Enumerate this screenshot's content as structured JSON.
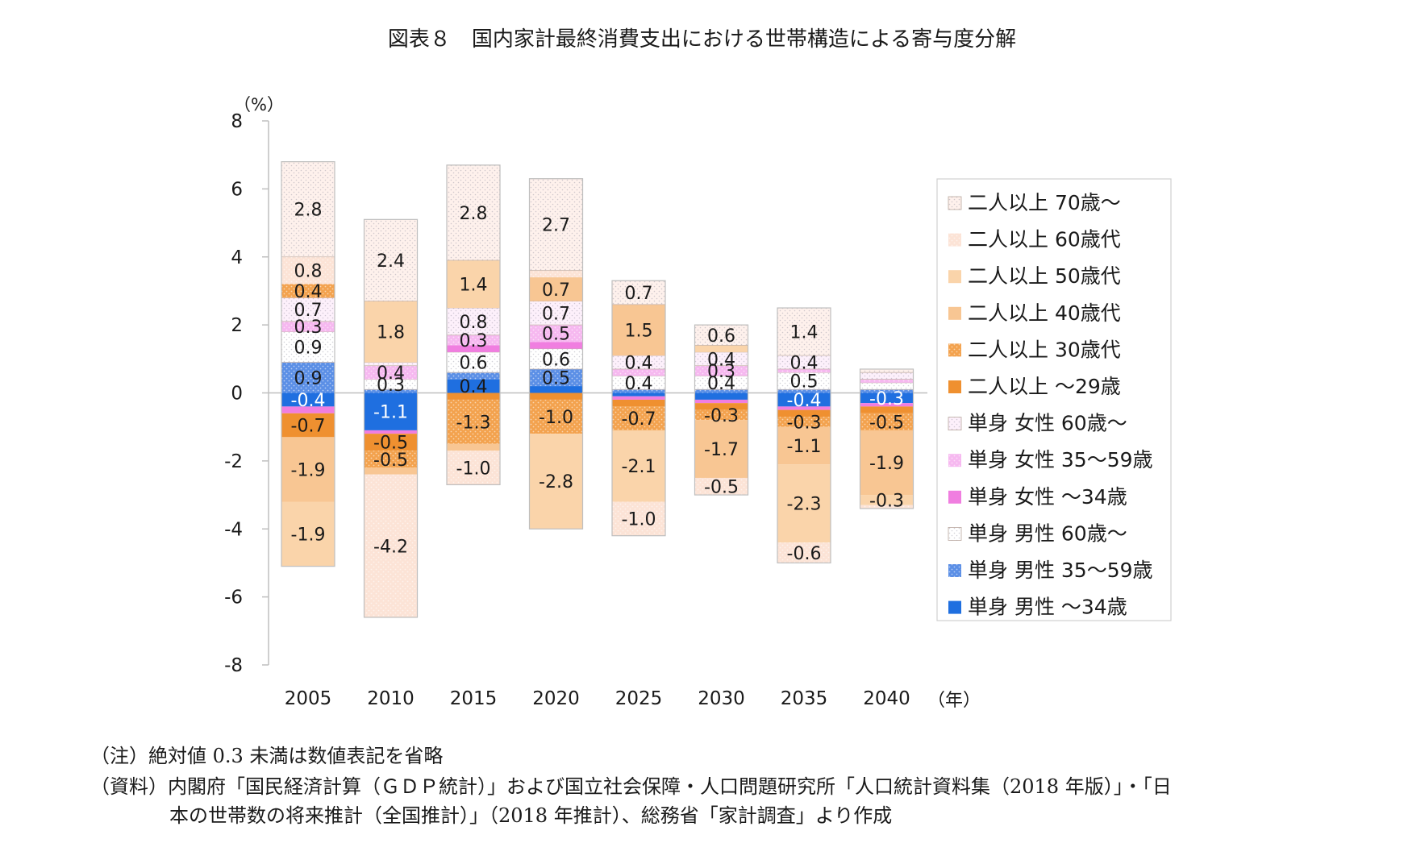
{
  "title": "図表８　国内家計最終消費支出における世帯構造による寄与度分解",
  "notes": {
    "note": "（注）絶対値 0.3 未満は数値表記を省略",
    "source_line1": "（資料）内閣府「国民経済計算（ＧＤＰ統計）」および国立社会保障・人口問題研究所「人口統計資料集（2018 年版）」・「日",
    "source_line2": "本の世帯数の将来推計（全国推計）」（2018 年推計）、総務省「家計調査」より作成"
  },
  "chart_data": {
    "type": "bar",
    "stacked": true,
    "categories": [
      "2005",
      "2010",
      "2015",
      "2020",
      "2025",
      "2030",
      "2035",
      "2040"
    ],
    "ylabel": "（%）",
    "xlabel": "（年）",
    "ylim": [
      -8,
      8
    ],
    "yticks": [
      "8",
      "6",
      "4",
      "2",
      "0",
      "-2",
      "-4",
      "-6",
      "-8"
    ],
    "legend_position": "right",
    "label_threshold": 0.3,
    "series": [
      {
        "name": "単身 男性 ～34歳",
        "color": "#1f6fe0",
        "pattern": "solid",
        "values": [
          -0.4,
          -1.1,
          0.4,
          0.2,
          -0.1,
          -0.2,
          -0.4,
          -0.3
        ]
      },
      {
        "name": "単身 男性 35～59歳",
        "color": "#5b8fe6",
        "pattern": "dots",
        "values": [
          0.9,
          0.1,
          0.2,
          0.5,
          0.1,
          0.1,
          0.1,
          0.1
        ]
      },
      {
        "name": "単身 男性 60歳～",
        "color": "#ffffff",
        "pattern": "lightdots",
        "values": [
          0.9,
          0.3,
          0.6,
          0.6,
          0.4,
          0.4,
          0.5,
          0.2
        ]
      },
      {
        "name": "単身 女性 ～34歳",
        "color": "#f07ee0",
        "pattern": "solid",
        "values": [
          -0.2,
          -0.1,
          0.2,
          0.2,
          -0.1,
          -0.1,
          -0.1,
          -0.1
        ]
      },
      {
        "name": "単身 女性 35～59歳",
        "color": "#f6b8f0",
        "pattern": "dots",
        "values": [
          0.3,
          0.4,
          0.3,
          0.5,
          0.2,
          0.3,
          0.1,
          0.1
        ]
      },
      {
        "name": "単身 女性 60歳～",
        "color": "#fdf0fb",
        "pattern": "lightdots",
        "values": [
          0.7,
          0.1,
          0.8,
          0.7,
          0.4,
          0.4,
          0.4,
          0.2
        ]
      },
      {
        "name": "二人以上 ～29歳",
        "color": "#ef9030",
        "pattern": "solid",
        "values": [
          -0.7,
          -0.5,
          -0.2,
          -0.2,
          -0.2,
          -0.2,
          -0.2,
          -0.2
        ]
      },
      {
        "name": "二人以上 30歳代",
        "color": "#f3a24e",
        "pattern": "dots",
        "values": [
          0.4,
          -0.5,
          -1.3,
          -1.0,
          -0.7,
          -0.3,
          -0.3,
          -0.5
        ]
      },
      {
        "name": "二人以上 40歳代",
        "color": "#f8c693",
        "pattern": "solid",
        "values": [
          -1.9,
          -0.2,
          -0.2,
          0.7,
          1.5,
          -1.7,
          -1.1,
          -1.9
        ]
      },
      {
        "name": "二人以上 50歳代",
        "color": "#fad4aa",
        "pattern": "solid",
        "values": [
          -1.9,
          1.8,
          1.4,
          -2.8,
          -2.1,
          0.2,
          -2.3,
          -0.3
        ]
      },
      {
        "name": "二人以上 60歳代",
        "color": "#fce3d6",
        "pattern": "dots",
        "values": [
          0.8,
          -4.2,
          -1.0,
          0.2,
          -1.0,
          -0.5,
          -0.6,
          -0.1
        ]
      },
      {
        "name": "二人以上 70歳～",
        "color": "#fef1ec",
        "pattern": "lightdots",
        "values": [
          2.8,
          2.4,
          2.8,
          2.7,
          0.7,
          0.6,
          1.4,
          0.1
        ]
      }
    ]
  }
}
